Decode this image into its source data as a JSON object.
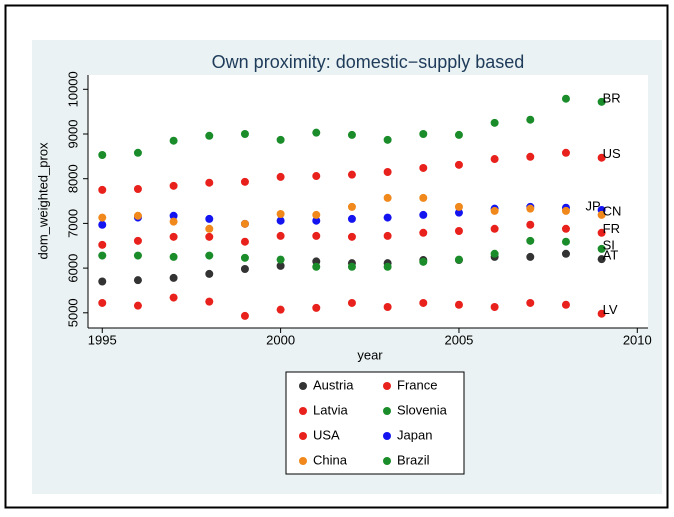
{
  "chart_data": {
    "type": "scatter",
    "title": "Own proximity: domestic−supply based",
    "x_label": "year",
    "y_label": "dom_weighted_prox",
    "x": [
      1995,
      1996,
      1997,
      1998,
      1999,
      2000,
      2001,
      2002,
      2003,
      2004,
      2005,
      2006,
      2007,
      2008,
      2009
    ],
    "xlim": [
      1994.6,
      2010.3
    ],
    "xticks": [
      1995,
      2000,
      2005,
      2010
    ],
    "ylim": [
      4660,
      10320
    ],
    "yticks": [
      5000,
      6000,
      7000,
      8000,
      9000,
      10000
    ],
    "legend_position": "bottom",
    "series": [
      {
        "name": "Austria",
        "color": "#333333",
        "label": "AT",
        "values": [
          5700,
          5730,
          5780,
          5870,
          5980,
          6050,
          6150,
          6110,
          6110,
          6180,
          6180,
          6250,
          6250,
          6320,
          6200
        ]
      },
      {
        "name": "France",
        "color": "#e8211c",
        "label": "FR",
        "values": [
          6520,
          6610,
          6700,
          6700,
          6590,
          6720,
          6720,
          6700,
          6720,
          6790,
          6830,
          6880,
          6970,
          6880,
          6790
        ]
      },
      {
        "name": "Latvia",
        "color": "#e8211c",
        "label": "LV",
        "values": [
          5220,
          5160,
          5340,
          5250,
          4930,
          5070,
          5110,
          5220,
          5130,
          5220,
          5180,
          5130,
          5220,
          5180,
          4980
        ]
      },
      {
        "name": "Slovenia",
        "color": "#1a8c2a",
        "label": "SI",
        "values": [
          6280,
          6280,
          6250,
          6280,
          6230,
          6190,
          6030,
          6030,
          6030,
          6140,
          6190,
          6320,
          6610,
          6590,
          6430
        ]
      },
      {
        "name": "USA",
        "color": "#e8211c",
        "label": "US",
        "values": [
          7750,
          7770,
          7840,
          7910,
          7930,
          8040,
          8060,
          8090,
          8150,
          8240,
          8310,
          8440,
          8490,
          8580,
          8470
        ]
      },
      {
        "name": "Japan",
        "color": "#1414f0",
        "label": "JP",
        "label_side": "left",
        "values": [
          6970,
          7130,
          7170,
          7100,
          6990,
          7060,
          7060,
          7100,
          7130,
          7190,
          7240,
          7330,
          7370,
          7350,
          7300
        ]
      },
      {
        "name": "China",
        "color": "#f0881c",
        "label": "CN",
        "values": [
          7130,
          7170,
          7040,
          6880,
          6990,
          7210,
          7190,
          7370,
          7570,
          7570,
          7370,
          7280,
          7330,
          7280,
          7190
        ]
      },
      {
        "name": "Brazil",
        "color": "#1a8c2a",
        "label": "BR",
        "values": [
          8530,
          8580,
          8850,
          8960,
          9000,
          8870,
          9030,
          8980,
          8870,
          9000,
          8980,
          9250,
          9320,
          9790,
          9720
        ]
      }
    ]
  }
}
